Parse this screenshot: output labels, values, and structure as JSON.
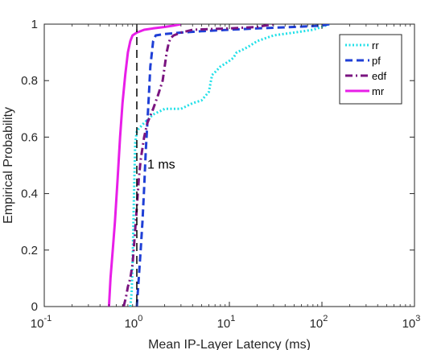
{
  "chart_data": {
    "type": "line",
    "title": "",
    "xlabel": "Mean IP-Layer Latency (ms)",
    "ylabel": "Empirical Probability",
    "xscale": "log",
    "xlim": [
      0.1,
      1000
    ],
    "ylim": [
      0,
      1
    ],
    "x_ticks": [
      {
        "base": "10",
        "exp": "-1"
      },
      {
        "base": "10",
        "exp": "0"
      },
      {
        "base": "10",
        "exp": "1"
      },
      {
        "base": "10",
        "exp": "2"
      },
      {
        "base": "10",
        "exp": "3"
      }
    ],
    "y_ticks": [
      "0",
      "0.2",
      "0.4",
      "0.6",
      "0.8",
      "1"
    ],
    "grid": false,
    "legend_position": "top-right",
    "reference_line": {
      "x": 1,
      "style": "dashed",
      "color": "#000000",
      "label": "1 ms"
    },
    "series": [
      {
        "name": "rr",
        "color": "#22e0e8",
        "style": "dotted",
        "x": [
          0.85,
          0.88,
          0.9,
          0.92,
          0.94,
          0.96,
          1.0,
          1.05,
          1.2,
          1.5,
          2.0,
          3.0,
          4.0,
          5.0,
          6.0,
          6.5,
          7.0,
          8.0,
          9.0,
          10.0,
          11.0,
          12.0,
          14.0,
          16.0,
          20.0,
          30.0,
          50.0,
          80.0,
          100.0,
          120.0
        ],
        "y": [
          0.0,
          0.05,
          0.15,
          0.3,
          0.45,
          0.58,
          0.62,
          0.63,
          0.65,
          0.68,
          0.7,
          0.7,
          0.72,
          0.73,
          0.76,
          0.82,
          0.83,
          0.85,
          0.86,
          0.87,
          0.88,
          0.9,
          0.91,
          0.92,
          0.94,
          0.96,
          0.97,
          0.98,
          0.99,
          1.0
        ]
      },
      {
        "name": "pf",
        "color": "#1f3fd6",
        "style": "dashed",
        "x": [
          1.0,
          1.05,
          1.1,
          1.15,
          1.2,
          1.25,
          1.3,
          1.35,
          1.4,
          1.5,
          1.6,
          2.0,
          3.0,
          5.0,
          10.0,
          20.0,
          50.0,
          100.0,
          120.0
        ],
        "y": [
          0.0,
          0.1,
          0.2,
          0.3,
          0.42,
          0.55,
          0.65,
          0.75,
          0.85,
          0.94,
          0.96,
          0.965,
          0.97,
          0.975,
          0.98,
          0.985,
          0.99,
          0.995,
          1.0
        ]
      },
      {
        "name": "edf",
        "color": "#7a1480",
        "style": "dashdot",
        "x": [
          0.72,
          0.76,
          0.8,
          0.85,
          0.9,
          0.95,
          1.0,
          1.05,
          1.1,
          1.2,
          1.3,
          1.5,
          1.7,
          1.9,
          2.0,
          2.1,
          2.2,
          2.3,
          2.5,
          3.0,
          4.0,
          10.0,
          20.0,
          30.0
        ],
        "y": [
          0.0,
          0.03,
          0.07,
          0.1,
          0.15,
          0.25,
          0.35,
          0.45,
          0.52,
          0.6,
          0.65,
          0.7,
          0.75,
          0.8,
          0.85,
          0.9,
          0.93,
          0.95,
          0.96,
          0.97,
          0.98,
          0.985,
          0.99,
          1.0
        ]
      },
      {
        "name": "mr",
        "color": "#e81ee8",
        "style": "solid",
        "x": [
          0.5,
          0.52,
          0.55,
          0.58,
          0.62,
          0.66,
          0.7,
          0.75,
          0.8,
          0.85,
          0.9,
          1.0,
          1.2,
          1.5,
          2.0,
          2.5,
          3.0
        ],
        "y": [
          0.0,
          0.1,
          0.2,
          0.3,
          0.45,
          0.6,
          0.72,
          0.82,
          0.9,
          0.94,
          0.96,
          0.97,
          0.98,
          0.985,
          0.99,
          0.995,
          1.0
        ]
      }
    ]
  }
}
